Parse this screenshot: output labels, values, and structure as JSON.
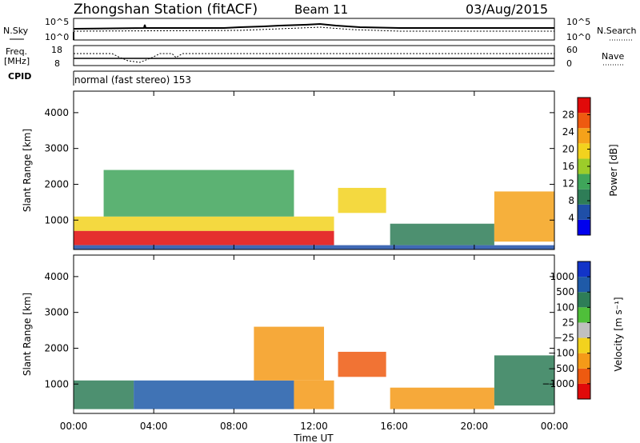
{
  "header": {
    "station": "Zhongshan Station (fitACF)",
    "beam": "Beam 11",
    "date": "03/Aug/2015"
  },
  "top_panels": {
    "nsky": {
      "label": "N.Sky",
      "ticks": [
        "10^5",
        "10^0"
      ]
    },
    "nsearch": {
      "label": "N.Search",
      "ticks": [
        "10^5",
        "10^0"
      ]
    },
    "freq": {
      "label_line1": "Freq.",
      "label_line2": "[MHz]",
      "ticks": [
        "18",
        "8"
      ]
    },
    "nave": {
      "label": "Nave",
      "ticks": [
        "60",
        "0"
      ]
    },
    "cpid": {
      "label": "CPID",
      "mode_text": "normal (fast stereo) 153"
    }
  },
  "colors": {
    "power_scale": [
      "#0000ee",
      "#1f4fa8",
      "#2e7d57",
      "#3fa55a",
      "#9ccc2a",
      "#f2d21e",
      "#f5a21a",
      "#ee5a10",
      "#e10a0a"
    ],
    "velocity_scale": [
      "#e10a0a",
      "#ee5a10",
      "#f59a18",
      "#f2d21e",
      "#c0c0c0",
      "#4fbf3a",
      "#2e7d57",
      "#1f5aa8",
      "#1234c8"
    ]
  },
  "chart_data": [
    {
      "type": "heatmap",
      "title": "",
      "xlabel": "Time UT",
      "ylabel": "Slant Range [km]",
      "x_ticks": [
        "00:00",
        "04:00",
        "08:00",
        "12:00",
        "16:00",
        "20:00",
        "00:00"
      ],
      "xlim": [
        0,
        24
      ],
      "ylim": [
        180,
        4600
      ],
      "y_ticks": [
        "1000",
        "2000",
        "3000",
        "4000"
      ],
      "colorbar": {
        "label": "Power [dB]",
        "ticks": [
          "28",
          "24",
          "20",
          "16",
          "12",
          "8",
          "4"
        ],
        "range": [
          0,
          32
        ]
      },
      "regions": [
        {
          "t": [
            0.0,
            13.0
          ],
          "r": [
            300,
            700
          ],
          "value": 29
        },
        {
          "t": [
            0.0,
            13.0
          ],
          "r": [
            700,
            1100
          ],
          "value": 18
        },
        {
          "t": [
            1.5,
            11.0
          ],
          "r": [
            1100,
            2400
          ],
          "value": 11
        },
        {
          "t": [
            13.2,
            15.6
          ],
          "r": [
            1200,
            1900
          ],
          "value": 20
        },
        {
          "t": [
            15.8,
            21.0
          ],
          "r": [
            300,
            900
          ],
          "value": 9
        },
        {
          "t": [
            21.0,
            24.0
          ],
          "r": [
            400,
            1800
          ],
          "value": 22
        },
        {
          "t": [
            0.0,
            24.0
          ],
          "r": [
            180,
            300
          ],
          "value": 6
        }
      ]
    },
    {
      "type": "heatmap",
      "title": "",
      "xlabel": "Time UT",
      "ylabel": "Slant Range [km]",
      "x_ticks": [
        "00:00",
        "04:00",
        "08:00",
        "12:00",
        "16:00",
        "20:00",
        "00:00"
      ],
      "xlim": [
        0,
        24
      ],
      "ylim": [
        180,
        4600
      ],
      "y_ticks": [
        "1000",
        "2000",
        "3000",
        "4000"
      ],
      "colorbar": {
        "label": "Velocity [m s⁻¹]",
        "ticks": [
          "1000",
          "500",
          "100",
          "25",
          "−25",
          "−100",
          "−500",
          "−1000"
        ]
      },
      "regions": [
        {
          "t": [
            0.0,
            3.0
          ],
          "r": [
            300,
            1100
          ],
          "value": 300
        },
        {
          "t": [
            3.0,
            11.0
          ],
          "r": [
            300,
            1100
          ],
          "value": 700
        },
        {
          "t": [
            11.0,
            13.0
          ],
          "r": [
            300,
            1100
          ],
          "value": -400
        },
        {
          "t": [
            9.0,
            12.5
          ],
          "r": [
            1100,
            2600
          ],
          "value": -200
        },
        {
          "t": [
            13.2,
            15.6
          ],
          "r": [
            1200,
            1900
          ],
          "value": -600
        },
        {
          "t": [
            15.8,
            21.0
          ],
          "r": [
            300,
            900
          ],
          "value": -150
        },
        {
          "t": [
            21.0,
            24.0
          ],
          "r": [
            400,
            1800
          ],
          "value": 200
        }
      ]
    }
  ]
}
